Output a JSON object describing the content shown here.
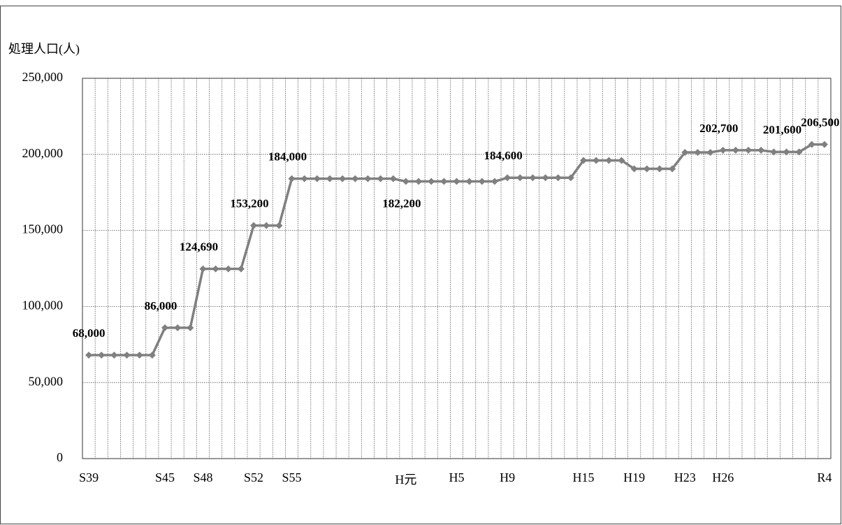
{
  "chart_data": {
    "type": "line",
    "y_axis_label": "処理人口(人)",
    "categories": [
      "S39",
      null,
      null,
      null,
      null,
      null,
      "S45",
      null,
      null,
      "S48",
      null,
      null,
      null,
      "S52",
      null,
      null,
      "S55",
      null,
      null,
      null,
      null,
      null,
      null,
      null,
      null,
      "H元",
      null,
      null,
      null,
      "H5",
      null,
      null,
      null,
      "H9",
      null,
      null,
      null,
      null,
      null,
      "H15",
      null,
      null,
      null,
      "H19",
      null,
      null,
      null,
      "H23",
      null,
      null,
      "H26",
      null,
      null,
      null,
      null,
      null,
      null,
      null,
      "R4"
    ],
    "series": [
      {
        "name": "処理人口",
        "color": "#808080",
        "values": [
          68000,
          68000,
          68000,
          68000,
          68000,
          68000,
          86000,
          86000,
          86000,
          124690,
          124690,
          124690,
          124690,
          153200,
          153200,
          153200,
          184000,
          184000,
          184000,
          184000,
          184000,
          184000,
          184000,
          184000,
          184000,
          182200,
          182200,
          182200,
          182200,
          182200,
          182200,
          182200,
          182200,
          184600,
          184600,
          184600,
          184600,
          184600,
          184600,
          196000,
          196000,
          196000,
          196000,
          190500,
          190500,
          190500,
          190500,
          201300,
          201300,
          201300,
          202700,
          202700,
          202700,
          202700,
          201600,
          201600,
          201600,
          206500,
          206500
        ],
        "value_labels": [
          "68,000",
          null,
          null,
          null,
          null,
          null,
          "86,000",
          null,
          null,
          "124,690",
          null,
          null,
          null,
          "153,200",
          null,
          null,
          "184,000",
          null,
          null,
          null,
          null,
          null,
          null,
          null,
          null,
          "182,200",
          null,
          null,
          null,
          null,
          null,
          null,
          null,
          "184,600",
          null,
          null,
          null,
          null,
          null,
          null,
          null,
          null,
          null,
          null,
          null,
          null,
          null,
          null,
          null,
          null,
          "202,700",
          null,
          null,
          null,
          null,
          "201,600",
          null,
          null,
          "206,500"
        ]
      }
    ],
    "ylim": [
      0,
      250000
    ],
    "yticks": [
      0,
      {
        "value": 50000,
        "label": "50,000"
      },
      {
        "value": 100000,
        "label": "100,000"
      },
      {
        "value": 150000,
        "label": "150,000"
      },
      {
        "value": 200000,
        "label": "200,000"
      },
      {
        "value": 250000,
        "label": "250,000"
      }
    ],
    "grid": true
  }
}
